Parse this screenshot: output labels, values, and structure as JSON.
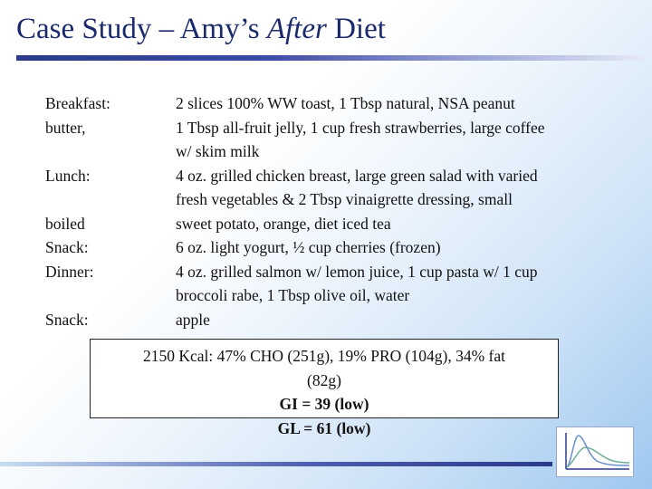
{
  "slide": {
    "title_prefix": "Case Study – Amy’s ",
    "title_emphasis": "After",
    "title_suffix": " Diet"
  },
  "meals": {
    "left_labels": [
      "Breakfast:",
      "butter,",
      "",
      "Lunch:",
      "",
      "boiled",
      "Snack:",
      "Dinner:",
      "",
      "Snack:"
    ],
    "right_lines": [
      "2 slices 100% WW toast, 1 Tbsp natural, NSA peanut",
      "1 Tbsp all-fruit jelly, 1 cup fresh strawberries, large coffee",
      "w/ skim milk",
      "4 oz. grilled chicken breast, large green salad with varied",
      "fresh vegetables & 2 Tbsp vinaigrette dressing, small",
      "sweet potato, orange, diet iced tea",
      "6 oz. light yogurt, ½ cup cherries (frozen)",
      "4 oz. grilled salmon w/ lemon juice, 1 cup pasta w/ 1 cup",
      "broccoli rabe, 1 Tbsp olive oil, water",
      "apple"
    ]
  },
  "summary": {
    "line1": "2150 Kcal: 47% CHO (251g), 19% PRO (104g), 34% fat",
    "line2": "(82g)",
    "gi": "GI = 39 (low)",
    "gl": "GL = 61 (low)"
  },
  "colors": {
    "title": "#1a2a6c",
    "rule": "#2b3a8a",
    "logo_curve_blue": "#6a8fd0",
    "logo_curve_green": "#6fae9a"
  },
  "logo": {
    "icon": "glucose-curve-logo-icon"
  }
}
